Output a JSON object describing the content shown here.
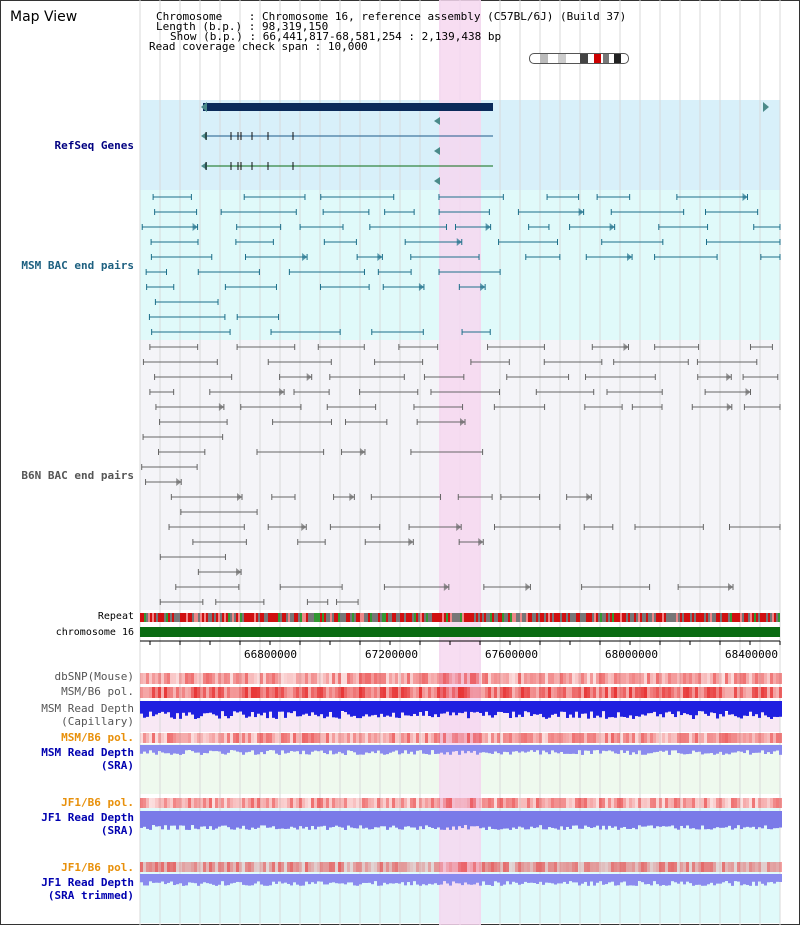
{
  "header": {
    "title": "Map View",
    "chromosome_label": "Chromosome",
    "chromosome_value": "Chromosome 16, reference assembly (C57BL/6J) (Build 37)",
    "length_label": "Length (b.p.)",
    "length_value": "98,319,150",
    "show_label": "Show (b.p.)",
    "show_value": "66,441,817-68,581,254 : 2,139,438 bp",
    "coverage_label": "Read coverage check span",
    "coverage_value": "10,000"
  },
  "tracks": {
    "refseq": "RefSeq Genes",
    "msm_bac": "MSM BAC end pairs",
    "b6n_bac": "B6N BAC end pairs",
    "repeat": "Repeat",
    "chromosome": "chromosome 16",
    "dbsnp": "dbSNP(Mouse)",
    "msm_b6_pol": "MSM/B6 pol.",
    "msm_depth_cap_1": "MSM Read Depth",
    "msm_depth_cap_2": "(Capillary)",
    "msm_b6_pol_2": "MSM/B6 pol.",
    "msm_depth_sra_1": "MSM Read Depth",
    "msm_depth_sra_2": "(SRA)",
    "jf1_b6_pol": "JF1/B6 pol.",
    "jf1_depth_sra_1": "JF1 Read Depth",
    "jf1_depth_sra_2": "(SRA)",
    "jf1_b6_pol_2": "JF1/B6 pol.",
    "jf1_depth_trim_1": "JF1 Read Depth",
    "jf1_depth_trim_2": "(SRA trimmed)"
  },
  "axis": {
    "ticks": [
      "66800000",
      "67200000",
      "67600000",
      "68000000",
      "68400000"
    ]
  },
  "colors": {
    "highlight": "#f6d7f0",
    "refseq_bg": "#d8f0fa",
    "msm_bg": "#e0fafa",
    "b6n_bg": "#f4f4f8",
    "gene_bar": "#0a2a5a",
    "msm_pair": "#1d6f8a",
    "b6n_pair": "#666666",
    "chromosome_bar": "#0a6b12",
    "depth_blue": "#2020e0",
    "depth_sra": "#8a8aee",
    "pol_orange": "#e8900a",
    "label_blue": "#000080",
    "label_teal": "#1d6080"
  }
}
